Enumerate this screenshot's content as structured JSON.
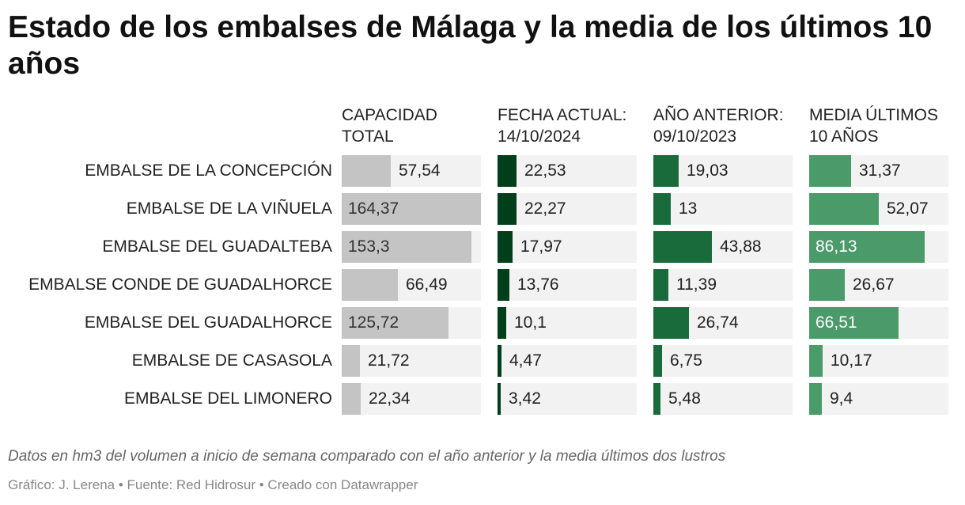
{
  "title": "Estado de los embalses de Málaga y la media de los últimos 10 años",
  "columns": [
    {
      "header": "CAPACIDAD\nTOTAL",
      "color": "#c4c4c4",
      "label_inside_color": "#333333"
    },
    {
      "header": "FECHA ACTUAL:\n14/10/2024",
      "color": "#013f1b",
      "label_inside_color": "#ffffff"
    },
    {
      "header": "AÑO ANTERIOR:\n09/10/2023",
      "color": "#1a6b3c",
      "label_inside_color": "#ffffff"
    },
    {
      "header": "MEDIA ÚLTIMOS\n10 AÑOS",
      "color": "#4a9a6a",
      "label_inside_color": "#ffffff"
    }
  ],
  "rows": [
    {
      "label": "EMBALSE DE LA CONCEPCIÓN",
      "values": [
        "57,54",
        "22,53",
        "19,03",
        "31,37"
      ]
    },
    {
      "label": "EMBALSE DE LA VIÑUELA",
      "values": [
        "164,37",
        "22,27",
        "13",
        "52,07"
      ]
    },
    {
      "label": "EMBALSE DEL GUADALTEBA",
      "values": [
        "153,3",
        "17,97",
        "43,88",
        "86,13"
      ]
    },
    {
      "label": "EMBALSE CONDE DE GUADALHORCE",
      "values": [
        "66,49",
        "13,76",
        "11,39",
        "26,67"
      ]
    },
    {
      "label": "EMBALSE DEL GUADALHORCE",
      "values": [
        "125,72",
        "10,1",
        "26,74",
        "66,51"
      ]
    },
    {
      "label": "EMBALSE DE CASASOLA",
      "values": [
        "21,72",
        "4,47",
        "6,75",
        "10,17"
      ]
    },
    {
      "label": "EMBALSE DEL LIMONERO",
      "values": [
        "22,34",
        "3,42",
        "5,48",
        "9,4"
      ]
    }
  ],
  "chart_data": {
    "type": "bar",
    "title": "Estado de los embalses de Málaga y la media de los últimos 10 años",
    "orientation": "horizontal",
    "categories": [
      "EMBALSE DE LA CONCEPCIÓN",
      "EMBALSE DE LA VIÑUELA",
      "EMBALSE DEL GUADALTEBA",
      "EMBALSE CONDE DE GUADALHORCE",
      "EMBALSE DEL GUADALHORCE",
      "EMBALSE DE CASASOLA",
      "EMBALSE DEL LIMONERO"
    ],
    "series": [
      {
        "name": "CAPACIDAD TOTAL",
        "values": [
          57.54,
          164.37,
          153.3,
          66.49,
          125.72,
          21.72,
          22.34
        ]
      },
      {
        "name": "FECHA ACTUAL: 14/10/2024",
        "values": [
          22.53,
          22.27,
          17.97,
          13.76,
          10.1,
          4.47,
          3.42
        ]
      },
      {
        "name": "AÑO ANTERIOR: 09/10/2023",
        "values": [
          19.03,
          13,
          43.88,
          11.39,
          26.74,
          6.75,
          5.48
        ]
      },
      {
        "name": "MEDIA ÚLTIMOS 10 AÑOS",
        "values": [
          31.37,
          52.07,
          86.13,
          26.67,
          66.51,
          10.17,
          9.4
        ]
      }
    ],
    "column_max": [
      164.37,
      164.37,
      104,
      104
    ],
    "unit": "hm3"
  },
  "notes": "Datos en hm3 del volumen a inicio de semana comparado con el año anterior y la media últimos dos lustros",
  "credits": "Gráfico: J. Lerena • Fuente: Red Hidrosur • Creado con Datawrapper"
}
